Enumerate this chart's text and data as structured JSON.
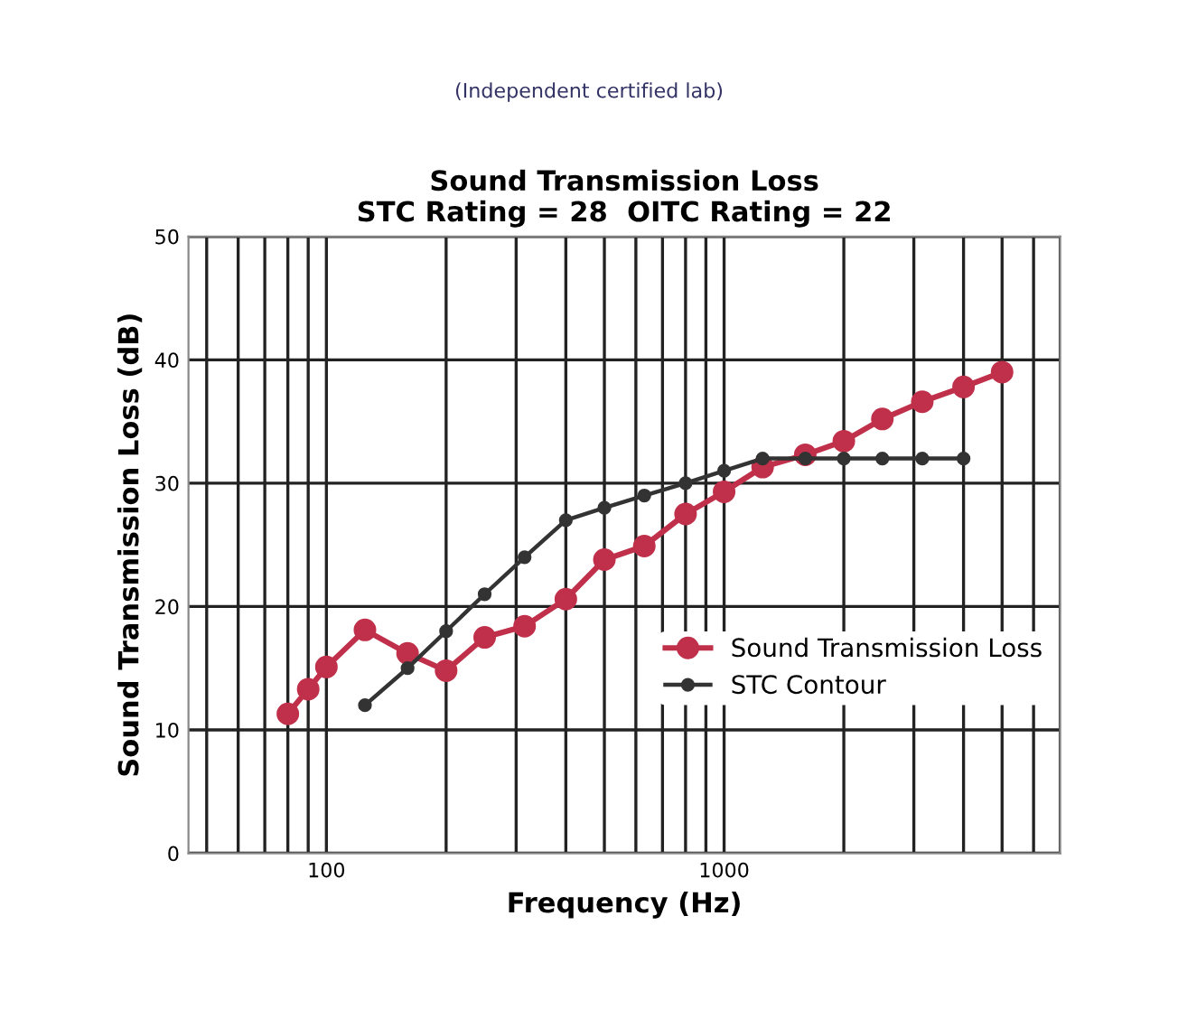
{
  "chart_data": {
    "type": "line",
    "title": "Sound Transmission Loss\nSTC Rating = 28  OITC Rating = 22",
    "annotations": [
      "(Independent certified lab)"
    ],
    "xlabel": "Frequency (Hz)",
    "ylabel": "Sound Transmission Loss (dB)",
    "log": "x",
    "xlim": [
      45,
      7000
    ],
    "xticks": [
      100,
      1000
    ],
    "ylim": [
      0,
      50
    ],
    "yticks": [
      0,
      10,
      20,
      30,
      40,
      50
    ],
    "grid": true,
    "legend": "right",
    "marker": "circle",
    "line_style": "solid",
    "series": [
      {
        "name": "Sound Transmission Loss",
        "color": "#c0304a",
        "x": [
          80,
          90,
          100,
          125,
          160,
          200,
          250,
          315,
          400,
          500,
          630,
          800,
          1000,
          1250,
          1600,
          2000,
          2500,
          3150,
          4000,
          5000
        ],
        "values": [
          11.3,
          13.3,
          15.1,
          18.1,
          16.2,
          14.8,
          17.5,
          18.4,
          20.6,
          23.8,
          24.9,
          27.5,
          29.3,
          31.3,
          32.3,
          33.4,
          35.2,
          36.6,
          37.8,
          39.0
        ]
      },
      {
        "name": "STC Contour",
        "color": "#333333",
        "x": [
          125,
          160,
          200,
          250,
          315,
          400,
          500,
          630,
          800,
          1000,
          1250,
          1600,
          2000,
          2500,
          3150,
          4000
        ],
        "values": [
          12,
          15,
          18,
          21,
          24,
          27,
          28,
          29,
          30,
          31,
          32,
          32,
          32,
          32,
          32,
          32
        ]
      }
    ]
  }
}
